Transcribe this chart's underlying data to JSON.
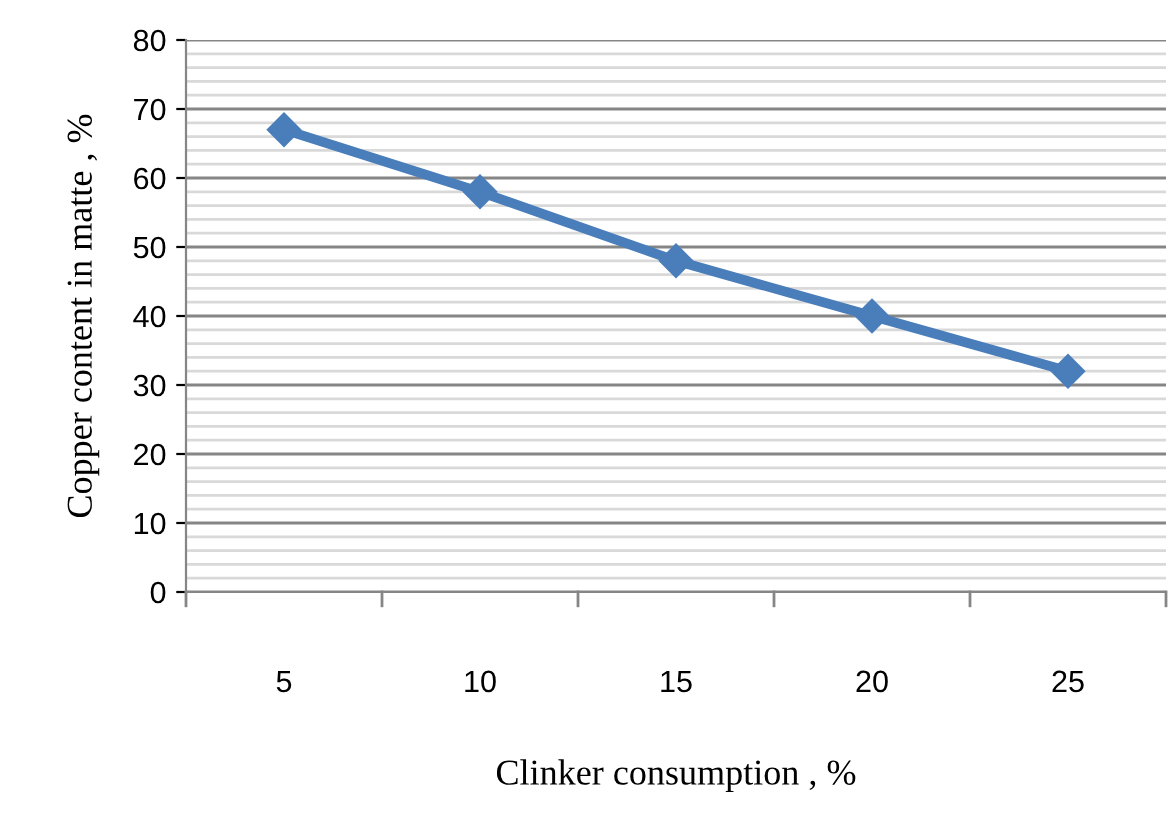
{
  "chart_data": {
    "type": "line",
    "xlabel": "Clinker consumption , %",
    "ylabel": "Copper content in matte , %",
    "categories": [
      "5",
      "10",
      "15",
      "20",
      "25"
    ],
    "series": [
      {
        "color": "#4a7ebb",
        "values": [
          67,
          58,
          48,
          40,
          32
        ]
      }
    ],
    "ylim": [
      0,
      80
    ],
    "yticks": [
      0,
      10,
      20,
      30,
      40,
      50,
      60,
      70,
      80
    ],
    "grid": "y",
    "marker": "diamond",
    "line_style": "solid",
    "legend": false
  }
}
